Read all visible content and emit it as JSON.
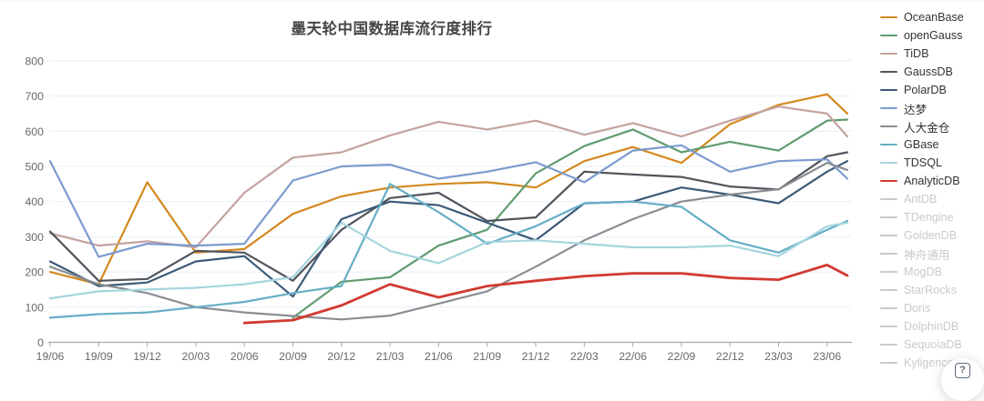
{
  "help_button": {
    "glyph": "?",
    "icon": "question-box-icon"
  },
  "legend": {
    "disabled_color": "#c8cacd"
  },
  "chart_data": {
    "type": "line",
    "title": "墨天轮中国数据库流行度排行",
    "legend_position": "right",
    "grid": true,
    "grid_color": "#e7eff7",
    "axis_color": "#a8a8a8",
    "tick_label_color": "#686868",
    "ylim": [
      0,
      800
    ],
    "y_tick_step": 100,
    "y_ticks": [
      "0",
      "100",
      "200",
      "300",
      "400",
      "500",
      "600",
      "700",
      "800"
    ],
    "x": [
      "19/06",
      "19/09",
      "19/12",
      "20/03",
      "20/06",
      "20/09",
      "20/12",
      "21/03",
      "21/06",
      "21/09",
      "21/12",
      "22/03",
      "22/06",
      "22/09",
      "22/12",
      "23/03",
      "23/06",
      ""
    ],
    "series": [
      {
        "name": "OceanBase",
        "color": "#d4891e",
        "width": 2.2,
        "active": true,
        "values": [
          200,
          165,
          455,
          255,
          265,
          365,
          415,
          440,
          450,
          455,
          440,
          515,
          555,
          510,
          620,
          675,
          705,
          650
        ]
      },
      {
        "name": "openGauss",
        "color": "#5f9c6f",
        "width": 2.2,
        "active": true,
        "values": [
          null,
          null,
          null,
          null,
          null,
          70,
          172,
          185,
          275,
          320,
          480,
          558,
          605,
          540,
          570,
          545,
          630,
          633
        ]
      },
      {
        "name": "TiDB",
        "color": "#c3a3a0",
        "width": 2.2,
        "active": true,
        "values": [
          310,
          275,
          287,
          270,
          425,
          525,
          540,
          588,
          627,
          605,
          630,
          590,
          623,
          585,
          630,
          670,
          650,
          585
        ]
      },
      {
        "name": "GaussDB",
        "color": "#50555c",
        "width": 2.2,
        "active": true,
        "values": [
          315,
          175,
          180,
          260,
          255,
          175,
          320,
          410,
          425,
          345,
          355,
          485,
          477,
          470,
          443,
          434,
          529,
          540
        ]
      },
      {
        "name": "PolarDB",
        "color": "#3d5a77",
        "width": 2.2,
        "active": true,
        "values": [
          230,
          160,
          170,
          230,
          245,
          130,
          350,
          400,
          390,
          340,
          290,
          395,
          400,
          440,
          420,
          395,
          485,
          515
        ]
      },
      {
        "name": "达梦",
        "color": "#7c9ace",
        "width": 2.2,
        "active": true,
        "values": [
          515,
          243,
          280,
          275,
          280,
          460,
          500,
          505,
          465,
          485,
          512,
          455,
          545,
          560,
          485,
          515,
          520,
          465
        ]
      },
      {
        "name": "人大金仓",
        "color": "#8a8d92",
        "width": 2.2,
        "active": true,
        "values": [
          215,
          165,
          140,
          100,
          85,
          75,
          65,
          76,
          110,
          145,
          215,
          290,
          350,
          400,
          420,
          435,
          510,
          490
        ]
      },
      {
        "name": "GBase",
        "color": "#66aec6",
        "width": 2.2,
        "active": true,
        "values": [
          70,
          80,
          85,
          100,
          115,
          140,
          160,
          450,
          370,
          280,
          330,
          395,
          400,
          385,
          290,
          255,
          320,
          345
        ]
      },
      {
        "name": "TDSQL",
        "color": "#a5d5de",
        "width": 2.2,
        "active": true,
        "values": [
          125,
          145,
          150,
          155,
          165,
          185,
          340,
          260,
          225,
          285,
          290,
          280,
          270,
          270,
          275,
          245,
          330,
          340
        ]
      },
      {
        "name": "AnalyticDB",
        "color": "#d23a32",
        "width": 2.8,
        "active": true,
        "values": [
          null,
          null,
          null,
          null,
          55,
          63,
          105,
          165,
          128,
          160,
          175,
          188,
          196,
          196,
          183,
          178,
          220,
          190
        ]
      },
      {
        "name": "AntDB",
        "color": "#c8cacd",
        "width": 2.2,
        "active": false,
        "values": null
      },
      {
        "name": "TDengine",
        "color": "#c8cacd",
        "width": 2.2,
        "active": false,
        "values": null
      },
      {
        "name": "GoldenDB",
        "color": "#c8cacd",
        "width": 2.2,
        "active": false,
        "values": null
      },
      {
        "name": "神舟通用",
        "color": "#c8cacd",
        "width": 2.2,
        "active": false,
        "values": null
      },
      {
        "name": "MogDB",
        "color": "#c8cacd",
        "width": 2.2,
        "active": false,
        "values": null
      },
      {
        "name": "StarRocks",
        "color": "#c8cacd",
        "width": 2.2,
        "active": false,
        "values": null
      },
      {
        "name": "Doris",
        "color": "#c8cacd",
        "width": 2.2,
        "active": false,
        "values": null
      },
      {
        "name": "DolphinDB",
        "color": "#c8cacd",
        "width": 2.2,
        "active": false,
        "values": null
      },
      {
        "name": "SequoiaDB",
        "color": "#c8cacd",
        "width": 2.2,
        "active": false,
        "values": null
      },
      {
        "name": "Kyligence",
        "color": "#c8cacd",
        "width": 2.2,
        "active": false,
        "values": null
      }
    ]
  }
}
